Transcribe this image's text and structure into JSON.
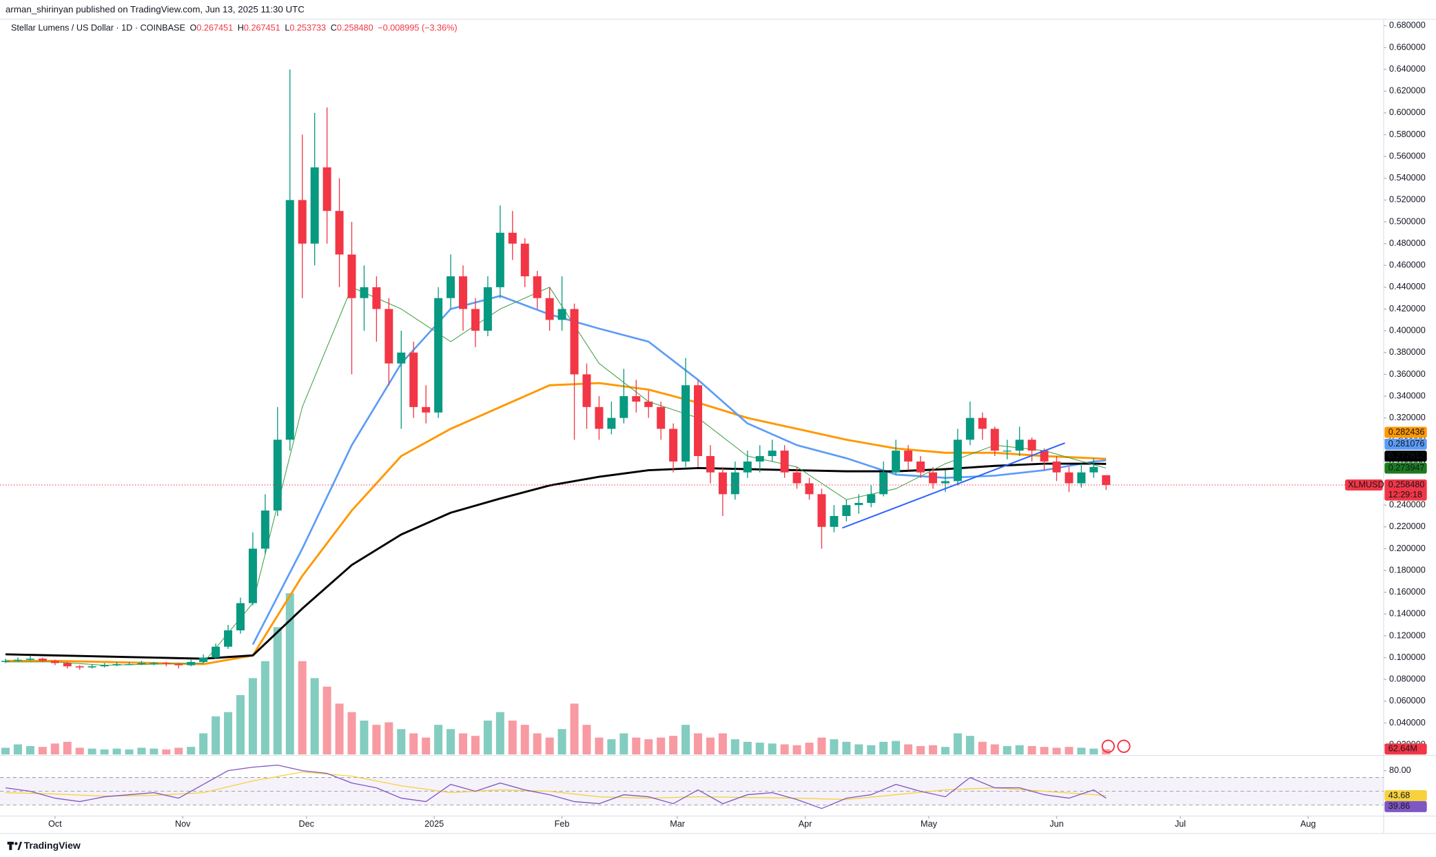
{
  "header": {
    "publisher": "arman_shirinyan published on TradingView.com, Jun 13, 2025 11:30 UTC"
  },
  "footer": {
    "brand": "TradingView"
  },
  "chart_data": {
    "type": "candlestick",
    "symbol_title": "Stellar Lumens / US Dollar · 1D · COINBASE",
    "ohlc_legend": [
      {
        "key": "O",
        "label": "0.267451"
      },
      {
        "key": "H",
        "label": "0.267451"
      },
      {
        "key": "L",
        "label": "0.253733"
      },
      {
        "key": "C",
        "label": "0.258480"
      }
    ],
    "change": "−0.008995 (−3.36%)",
    "xlim": [
      0,
      333
    ],
    "xticks": [
      {
        "value": 12,
        "label": "Oct"
      },
      {
        "value": 43,
        "label": "Nov"
      },
      {
        "value": 73,
        "label": "Dec"
      },
      {
        "value": 104,
        "label": "2025"
      },
      {
        "value": 135,
        "label": "Feb"
      },
      {
        "value": 163,
        "label": "Mar"
      },
      {
        "value": 194,
        "label": "Apr"
      },
      {
        "value": 224,
        "label": "May"
      },
      {
        "value": 255,
        "label": "Jun"
      },
      {
        "value": 285,
        "label": "Jul"
      },
      {
        "value": 316,
        "label": "Aug"
      }
    ],
    "ylim": [
      0.011,
      0.691
    ],
    "yticks": [
      {
        "value": 0.02,
        "label": "0.020000"
      },
      {
        "value": 0.04,
        "label": "0.040000"
      },
      {
        "value": 0.06,
        "label": "0.060000"
      },
      {
        "value": 0.08,
        "label": "0.080000"
      },
      {
        "value": 0.1,
        "label": "0.100000"
      },
      {
        "value": 0.12,
        "label": "0.120000"
      },
      {
        "value": 0.14,
        "label": "0.140000"
      },
      {
        "value": 0.16,
        "label": "0.160000"
      },
      {
        "value": 0.18,
        "label": "0.180000"
      },
      {
        "value": 0.2,
        "label": "0.200000"
      },
      {
        "value": 0.22,
        "label": "0.220000"
      },
      {
        "value": 0.24,
        "label": "0.240000"
      },
      {
        "value": 0.26,
        "label": "0.260000"
      },
      {
        "value": 0.28,
        "label": "0.280000"
      },
      {
        "value": 0.3,
        "label": "0.300000"
      },
      {
        "value": 0.32,
        "label": "0.320000"
      },
      {
        "value": 0.34,
        "label": "0.340000"
      },
      {
        "value": 0.36,
        "label": "0.360000"
      },
      {
        "value": 0.38,
        "label": "0.380000"
      },
      {
        "value": 0.4,
        "label": "0.400000"
      },
      {
        "value": 0.42,
        "label": "0.420000"
      },
      {
        "value": 0.44,
        "label": "0.440000"
      },
      {
        "value": 0.46,
        "label": "0.460000"
      },
      {
        "value": 0.48,
        "label": "0.480000"
      },
      {
        "value": 0.5,
        "label": "0.500000"
      },
      {
        "value": 0.52,
        "label": "0.520000"
      },
      {
        "value": 0.54,
        "label": "0.540000"
      },
      {
        "value": 0.56,
        "label": "0.560000"
      },
      {
        "value": 0.58,
        "label": "0.580000"
      },
      {
        "value": 0.6,
        "label": "0.600000"
      },
      {
        "value": 0.62,
        "label": "0.620000"
      },
      {
        "value": 0.64,
        "label": "0.640000"
      },
      {
        "value": 0.66,
        "label": "0.660000"
      },
      {
        "value": 0.68,
        "label": "0.680000"
      }
    ],
    "grid": false,
    "up_color": "#089981",
    "down_color": "#f23645",
    "x": [
      0,
      3,
      6,
      9,
      12,
      15,
      18,
      21,
      24,
      27,
      30,
      33,
      36,
      39,
      42,
      45,
      48,
      51,
      54,
      57,
      60,
      63,
      66,
      69,
      72,
      75,
      78,
      81,
      84,
      87,
      90,
      93,
      96,
      99,
      102,
      105,
      108,
      111,
      114,
      117,
      120,
      123,
      126,
      129,
      132,
      135,
      138,
      141,
      144,
      147,
      150,
      153,
      156,
      159,
      162,
      165,
      168,
      171,
      174,
      177,
      180,
      183,
      186,
      189,
      192,
      195,
      198,
      201,
      204,
      207,
      210,
      213,
      216,
      219,
      222,
      225,
      228,
      231,
      234,
      237,
      240,
      243,
      246,
      249,
      252,
      255,
      258,
      261,
      264,
      267
    ],
    "ohlc": [
      [
        0.096,
        0.099,
        0.095,
        0.097
      ],
      [
        0.097,
        0.1,
        0.096,
        0.098
      ],
      [
        0.098,
        0.102,
        0.097,
        0.099
      ],
      [
        0.099,
        0.1,
        0.096,
        0.097
      ],
      [
        0.097,
        0.098,
        0.093,
        0.095
      ],
      [
        0.095,
        0.096,
        0.09,
        0.092
      ],
      [
        0.092,
        0.093,
        0.089,
        0.091
      ],
      [
        0.091,
        0.094,
        0.09,
        0.092
      ],
      [
        0.092,
        0.095,
        0.091,
        0.093
      ],
      [
        0.093,
        0.096,
        0.092,
        0.094
      ],
      [
        0.094,
        0.096,
        0.093,
        0.094
      ],
      [
        0.094,
        0.097,
        0.093,
        0.095
      ],
      [
        0.095,
        0.096,
        0.093,
        0.095
      ],
      [
        0.095,
        0.096,
        0.092,
        0.094
      ],
      [
        0.094,
        0.095,
        0.09,
        0.093
      ],
      [
        0.093,
        0.098,
        0.092,
        0.096
      ],
      [
        0.096,
        0.103,
        0.095,
        0.1
      ],
      [
        0.1,
        0.113,
        0.099,
        0.11
      ],
      [
        0.11,
        0.13,
        0.108,
        0.125
      ],
      [
        0.125,
        0.155,
        0.122,
        0.15
      ],
      [
        0.15,
        0.215,
        0.148,
        0.2
      ],
      [
        0.2,
        0.25,
        0.195,
        0.235
      ],
      [
        0.235,
        0.33,
        0.23,
        0.3
      ],
      [
        0.3,
        0.64,
        0.29,
        0.52
      ],
      [
        0.52,
        0.58,
        0.43,
        0.48
      ],
      [
        0.48,
        0.6,
        0.46,
        0.55
      ],
      [
        0.55,
        0.605,
        0.48,
        0.51
      ],
      [
        0.51,
        0.54,
        0.44,
        0.47
      ],
      [
        0.47,
        0.5,
        0.36,
        0.43
      ],
      [
        0.43,
        0.46,
        0.4,
        0.44
      ],
      [
        0.44,
        0.45,
        0.39,
        0.42
      ],
      [
        0.42,
        0.43,
        0.35,
        0.37
      ],
      [
        0.37,
        0.4,
        0.31,
        0.38
      ],
      [
        0.38,
        0.39,
        0.32,
        0.33
      ],
      [
        0.33,
        0.35,
        0.315,
        0.325
      ],
      [
        0.325,
        0.44,
        0.32,
        0.43
      ],
      [
        0.43,
        0.47,
        0.42,
        0.45
      ],
      [
        0.45,
        0.46,
        0.4,
        0.42
      ],
      [
        0.42,
        0.43,
        0.385,
        0.4
      ],
      [
        0.4,
        0.45,
        0.395,
        0.44
      ],
      [
        0.44,
        0.515,
        0.43,
        0.49
      ],
      [
        0.49,
        0.51,
        0.465,
        0.48
      ],
      [
        0.48,
        0.485,
        0.44,
        0.45
      ],
      [
        0.45,
        0.455,
        0.42,
        0.43
      ],
      [
        0.43,
        0.44,
        0.4,
        0.41
      ],
      [
        0.41,
        0.45,
        0.4,
        0.42
      ],
      [
        0.42,
        0.425,
        0.3,
        0.36
      ],
      [
        0.36,
        0.37,
        0.31,
        0.33
      ],
      [
        0.33,
        0.34,
        0.3,
        0.31
      ],
      [
        0.31,
        0.335,
        0.305,
        0.32
      ],
      [
        0.32,
        0.365,
        0.315,
        0.34
      ],
      [
        0.34,
        0.355,
        0.325,
        0.335
      ],
      [
        0.335,
        0.345,
        0.32,
        0.33
      ],
      [
        0.33,
        0.335,
        0.3,
        0.31
      ],
      [
        0.31,
        0.315,
        0.27,
        0.28
      ],
      [
        0.28,
        0.375,
        0.275,
        0.35
      ],
      [
        0.35,
        0.355,
        0.275,
        0.285
      ],
      [
        0.285,
        0.295,
        0.26,
        0.27
      ],
      [
        0.27,
        0.275,
        0.23,
        0.25
      ],
      [
        0.25,
        0.28,
        0.245,
        0.27
      ],
      [
        0.27,
        0.29,
        0.265,
        0.28
      ],
      [
        0.28,
        0.295,
        0.27,
        0.285
      ],
      [
        0.285,
        0.3,
        0.28,
        0.29
      ],
      [
        0.29,
        0.295,
        0.265,
        0.27
      ],
      [
        0.27,
        0.275,
        0.255,
        0.26
      ],
      [
        0.26,
        0.265,
        0.245,
        0.25
      ],
      [
        0.25,
        0.255,
        0.2,
        0.22
      ],
      [
        0.22,
        0.24,
        0.215,
        0.23
      ],
      [
        0.23,
        0.245,
        0.225,
        0.24
      ],
      [
        0.24,
        0.25,
        0.232,
        0.242
      ],
      [
        0.242,
        0.258,
        0.238,
        0.25
      ],
      [
        0.25,
        0.28,
        0.248,
        0.27
      ],
      [
        0.27,
        0.3,
        0.268,
        0.29
      ],
      [
        0.29,
        0.295,
        0.272,
        0.28
      ],
      [
        0.28,
        0.285,
        0.265,
        0.27
      ],
      [
        0.27,
        0.275,
        0.255,
        0.26
      ],
      [
        0.26,
        0.272,
        0.252,
        0.262
      ],
      [
        0.262,
        0.31,
        0.258,
        0.3
      ],
      [
        0.3,
        0.335,
        0.295,
        0.32
      ],
      [
        0.32,
        0.325,
        0.3,
        0.31
      ],
      [
        0.31,
        0.312,
        0.285,
        0.29
      ],
      [
        0.29,
        0.3,
        0.282,
        0.29
      ],
      [
        0.29,
        0.312,
        0.285,
        0.3
      ],
      [
        0.3,
        0.302,
        0.28,
        0.29
      ],
      [
        0.29,
        0.292,
        0.272,
        0.28
      ],
      [
        0.28,
        0.285,
        0.262,
        0.27
      ],
      [
        0.27,
        0.275,
        0.252,
        0.26
      ],
      [
        0.26,
        0.278,
        0.256,
        0.27
      ],
      [
        0.27,
        0.283,
        0.265,
        0.275
      ],
      [
        0.267451,
        0.267451,
        0.253733,
        0.25848
      ]
    ],
    "volume": {
      "lim": [
        0,
        2000
      ],
      "last_label": "62.64M",
      "values": [
        80,
        120,
        100,
        90,
        130,
        150,
        80,
        70,
        60,
        70,
        60,
        80,
        70,
        60,
        80,
        90,
        250,
        450,
        500,
        700,
        900,
        1100,
        1500,
        1900,
        1100,
        900,
        800,
        600,
        500,
        400,
        350,
        380,
        300,
        250,
        200,
        350,
        300,
        250,
        220,
        400,
        500,
        400,
        350,
        250,
        200,
        300,
        600,
        350,
        200,
        180,
        250,
        200,
        180,
        200,
        220,
        350,
        250,
        200,
        250,
        180,
        150,
        140,
        130,
        120,
        110,
        140,
        200,
        180,
        150,
        120,
        110,
        150,
        160,
        120,
        100,
        110,
        90,
        250,
        220,
        150,
        120,
        100,
        110,
        100,
        90,
        80,
        90,
        80,
        70,
        62.64
      ]
    },
    "ma_x": [
      0,
      12,
      24,
      36,
      48,
      60,
      72,
      84,
      96,
      108,
      120,
      132,
      144,
      156,
      168,
      180,
      192,
      204,
      216,
      228,
      240,
      252,
      264,
      267
    ],
    "moving_averages": [
      {
        "color": "#ff9800",
        "width": 2.2,
        "values": [
          0.097,
          0.097,
          0.096,
          0.095,
          0.094,
          0.102,
          0.175,
          0.235,
          0.285,
          0.31,
          0.33,
          0.35,
          0.352,
          0.346,
          0.334,
          0.32,
          0.31,
          0.3,
          0.292,
          0.288,
          0.288,
          0.285,
          0.283,
          0.282436
        ]
      },
      {
        "color": "#5b9cf6",
        "width": 2,
        "values": [
          null,
          null,
          null,
          null,
          null,
          0.112,
          0.2,
          0.295,
          0.37,
          0.42,
          0.432,
          0.415,
          0.402,
          0.39,
          0.355,
          0.315,
          0.295,
          0.283,
          0.268,
          0.265,
          0.267,
          0.272,
          0.28,
          0.281076
        ]
      },
      {
        "color": "#000000",
        "width": 2.2,
        "values": [
          0.103,
          0.102,
          0.101,
          0.1,
          0.099,
          0.102,
          0.145,
          0.185,
          0.213,
          0.233,
          0.246,
          0.258,
          0.266,
          0.272,
          0.274,
          0.273,
          0.272,
          0.271,
          0.271,
          0.273,
          0.276,
          0.278,
          0.278,
          0.277812
        ]
      },
      {
        "color": "#43a047",
        "width": 0.8,
        "tag_color": "#1b7a1f",
        "values": [
          0.096,
          0.096,
          0.093,
          0.094,
          0.095,
          0.15,
          0.33,
          0.44,
          0.42,
          0.39,
          0.42,
          0.44,
          0.37,
          0.335,
          0.32,
          0.285,
          0.275,
          0.245,
          0.255,
          0.278,
          0.295,
          0.29,
          0.277,
          0.273947
        ]
      }
    ],
    "trendlines": [
      {
        "color": "#2962ff",
        "x": [
          203,
          257
        ],
        "values": [
          0.219,
          0.297
        ]
      }
    ],
    "last_price": {
      "symbol": "XLMUSD",
      "value": 0.25848,
      "label": "0.258480",
      "countdown": "12:29:18"
    },
    "rsi": {
      "lim": [
        10,
        90
      ],
      "ticks": [
        {
          "value": 80,
          "label": "80.00"
        }
      ],
      "levels": [
        70,
        50,
        30
      ],
      "color": "#7e57c2",
      "ma_color": "#f7d23c",
      "x": [
        0,
        6,
        12,
        18,
        24,
        30,
        36,
        42,
        48,
        54,
        60,
        66,
        72,
        78,
        84,
        90,
        96,
        102,
        108,
        114,
        120,
        126,
        132,
        138,
        144,
        150,
        156,
        162,
        168,
        174,
        180,
        186,
        192,
        198,
        204,
        210,
        216,
        222,
        228,
        234,
        240,
        246,
        252,
        258,
        264,
        267
      ],
      "values": [
        55,
        50,
        40,
        35,
        42,
        45,
        48,
        40,
        60,
        80,
        85,
        88,
        80,
        76,
        62,
        55,
        40,
        35,
        60,
        50,
        62,
        52,
        45,
        35,
        32,
        45,
        42,
        32,
        52,
        32,
        45,
        48,
        38,
        25,
        40,
        45,
        60,
        50,
        42,
        70,
        55,
        55,
        45,
        40,
        52,
        39.86
      ],
      "ma_values": [
        48,
        46,
        43,
        44,
        48,
        65,
        78,
        72,
        58,
        48,
        52,
        50,
        42,
        40,
        42,
        41,
        40,
        38,
        45,
        52,
        55,
        50,
        45,
        43.68
      ]
    }
  }
}
